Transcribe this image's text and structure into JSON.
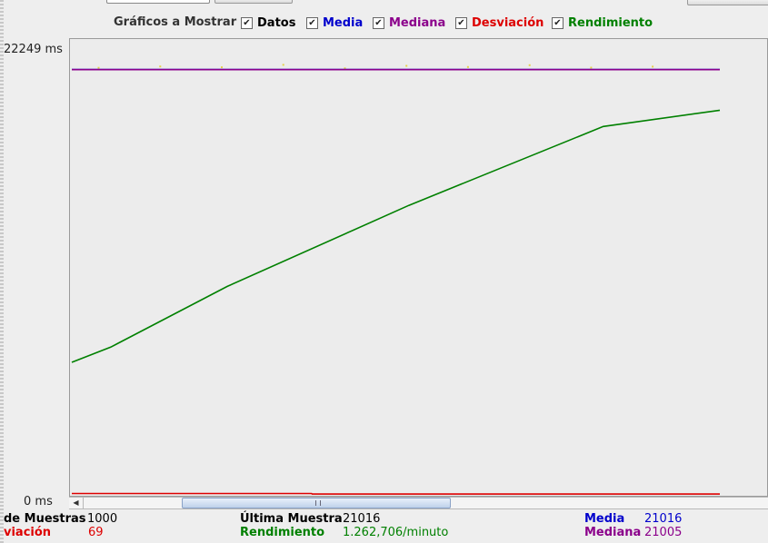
{
  "legend": {
    "title": "Gráficos a Mostrar",
    "items": [
      {
        "label": "Datos",
        "color": "#000000",
        "checked": true
      },
      {
        "label": "Media",
        "color": "#0000cc",
        "checked": true
      },
      {
        "label": "Mediana",
        "color": "#8b008b",
        "checked": true
      },
      {
        "label": "Desviación",
        "color": "#dd0000",
        "checked": true
      },
      {
        "label": "Rendimiento",
        "color": "#008000",
        "checked": true
      }
    ]
  },
  "axis": {
    "y_max_label": "22249 ms",
    "y_min_label": "0 ms"
  },
  "stats": {
    "muestras_label": "de Muestras",
    "muestras_value": "1000",
    "ultima_label": "Última Muestra",
    "ultima_value": "21016",
    "media_label": "Media",
    "media_value": "21016",
    "desviacion_label": "viación",
    "desviacion_value": "69",
    "rendimiento_label": "Rendimiento",
    "rendimiento_value": "1.262,706/minuto",
    "mediana_label": "Mediana",
    "mediana_value": "21005"
  },
  "chart_data": {
    "type": "line",
    "ylim": [
      0,
      22249
    ],
    "series": [
      {
        "name": "Media",
        "color": "#0000cc",
        "x": [
          0,
          1000
        ],
        "y": [
          21016,
          21016
        ]
      },
      {
        "name": "Mediana",
        "color": "#8b008b",
        "x": [
          0,
          1000
        ],
        "y": [
          21005,
          21005
        ]
      },
      {
        "name": "Desviación",
        "color": "#dd0000",
        "x": [
          0,
          370,
          371,
          1000
        ],
        "y": [
          69,
          69,
          40,
          40
        ]
      },
      {
        "name": "Rendimiento",
        "color": "#008000",
        "x": [
          0,
          60,
          240,
          520,
          820,
          1000
        ],
        "y": [
          6550,
          7300,
          10300,
          14300,
          18200,
          19000
        ]
      }
    ]
  }
}
